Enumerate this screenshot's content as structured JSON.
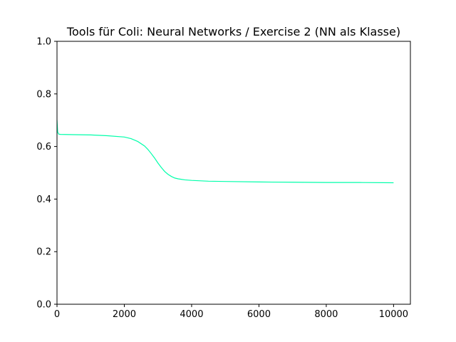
{
  "chart_data": {
    "type": "line",
    "title": "Tools für Coli:  Neural Networks / Exercise 2 (NN als Klasse)",
    "xlabel": "",
    "ylabel": "",
    "xlim": [
      0,
      10500
    ],
    "ylim": [
      0.0,
      1.0
    ],
    "xticks": [
      0,
      2000,
      4000,
      6000,
      8000,
      10000
    ],
    "xtick_labels": [
      "0",
      "2000",
      "4000",
      "6000",
      "8000",
      "10000"
    ],
    "yticks": [
      0.0,
      0.2,
      0.4,
      0.6,
      0.8,
      1.0
    ],
    "ytick_labels": [
      "0.0",
      "0.2",
      "0.4",
      "0.6",
      "0.8",
      "1.0"
    ],
    "grid": false,
    "series": [
      {
        "color": "#00ffaa",
        "x": [
          0,
          20,
          50,
          100,
          500,
          1000,
          1500,
          2000,
          2200,
          2400,
          2600,
          2700,
          2800,
          2900,
          3000,
          3100,
          3200,
          3300,
          3400,
          3500,
          3600,
          3800,
          4000,
          4500,
          5000,
          6000,
          7000,
          8000,
          9000,
          10000
        ],
        "y": [
          0.7,
          0.655,
          0.647,
          0.646,
          0.645,
          0.644,
          0.641,
          0.636,
          0.63,
          0.619,
          0.602,
          0.589,
          0.573,
          0.556,
          0.537,
          0.52,
          0.505,
          0.494,
          0.486,
          0.48,
          0.477,
          0.473,
          0.471,
          0.468,
          0.467,
          0.465,
          0.464,
          0.463,
          0.463,
          0.462
        ]
      }
    ]
  }
}
